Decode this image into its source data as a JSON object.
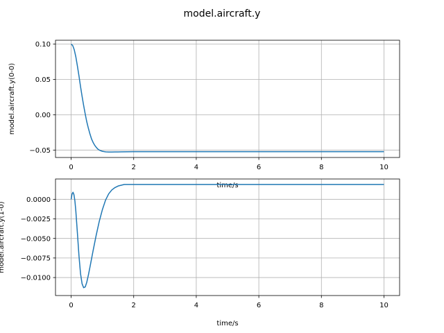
{
  "title": "model.aircraft.y",
  "chart_data": [
    {
      "type": "line",
      "title": "",
      "xlabel": "time/s",
      "ylabel": "model.aircraft.y(0-0)",
      "xlim": [
        -0.5,
        10.5
      ],
      "ylim": [
        -0.0605,
        0.1055
      ],
      "xticks": [
        0,
        2,
        4,
        6,
        8,
        10
      ],
      "xtick_labels": [
        "0",
        "2",
        "4",
        "6",
        "8",
        "10"
      ],
      "yticks": [
        -0.05,
        0.0,
        0.05,
        0.1
      ],
      "ytick_labels": [
        "−0.05",
        "0.00",
        "0.05",
        "0.10"
      ],
      "grid": true,
      "color": "#1f77b4",
      "series": [
        {
          "x": [
            0,
            0.05,
            0.1,
            0.15,
            0.2,
            0.25,
            0.3,
            0.35,
            0.4,
            0.45,
            0.5,
            0.55,
            0.6,
            0.65,
            0.7,
            0.75,
            0.8,
            0.85,
            0.9,
            0.95,
            1.0,
            1.05,
            1.1,
            1.15,
            1.2,
            1.3,
            1.4,
            1.5,
            1.6,
            1.8,
            2.0,
            2.5,
            3,
            4,
            5,
            6,
            7,
            8,
            9,
            10
          ],
          "y": [
            0.1,
            0.098,
            0.092,
            0.082,
            0.069,
            0.055,
            0.04,
            0.026,
            0.013,
            0.001,
            -0.01,
            -0.019,
            -0.027,
            -0.034,
            -0.039,
            -0.043,
            -0.046,
            -0.0485,
            -0.05,
            -0.051,
            -0.0518,
            -0.0522,
            -0.0525,
            -0.0527,
            -0.0528,
            -0.0528,
            -0.0527,
            -0.0526,
            -0.0525,
            -0.0524,
            -0.0523,
            -0.0523,
            -0.0523,
            -0.0523,
            -0.0523,
            -0.0523,
            -0.0523,
            -0.0523,
            -0.0523,
            -0.0523
          ]
        }
      ]
    },
    {
      "type": "line",
      "title": "",
      "xlabel": "time/s",
      "ylabel": "model.aircraft.y(1-0)",
      "xlim": [
        -0.5,
        10.5
      ],
      "ylim": [
        -0.0123,
        0.0026
      ],
      "xticks": [
        0,
        2,
        4,
        6,
        8,
        10
      ],
      "xtick_labels": [
        "0",
        "2",
        "4",
        "6",
        "8",
        "10"
      ],
      "yticks": [
        -0.01,
        -0.0075,
        -0.005,
        -0.0025,
        0.0
      ],
      "ytick_labels": [
        "−0.0100",
        "−0.0075",
        "−0.0050",
        "−0.0025",
        "0.0000"
      ],
      "grid": true,
      "color": "#1f77b4",
      "series": [
        {
          "x": [
            0,
            0.03,
            0.06,
            0.09,
            0.12,
            0.15,
            0.2,
            0.25,
            0.3,
            0.35,
            0.4,
            0.45,
            0.5,
            0.55,
            0.6,
            0.7,
            0.8,
            0.9,
            1.0,
            1.1,
            1.2,
            1.3,
            1.4,
            1.5,
            1.6,
            1.7,
            1.8,
            1.9,
            2.0,
            2.2,
            2.5,
            3,
            4,
            5,
            6,
            7,
            8,
            9,
            10
          ],
          "y": [
            0.0,
            0.0007,
            0.0009,
            0.0006,
            -0.0002,
            -0.0015,
            -0.0043,
            -0.0072,
            -0.0095,
            -0.0108,
            -0.0113,
            -0.0112,
            -0.0106,
            -0.0097,
            -0.0087,
            -0.0066,
            -0.0046,
            -0.0028,
            -0.0013,
            -0.0001,
            0.0007,
            0.0012,
            0.0015,
            0.0017,
            0.0018,
            0.0019,
            0.0019,
            0.0019,
            0.0019,
            0.0019,
            0.0019,
            0.0019,
            0.0019,
            0.0019,
            0.0019,
            0.0019,
            0.0019,
            0.0019,
            0.0019
          ]
        }
      ]
    }
  ]
}
